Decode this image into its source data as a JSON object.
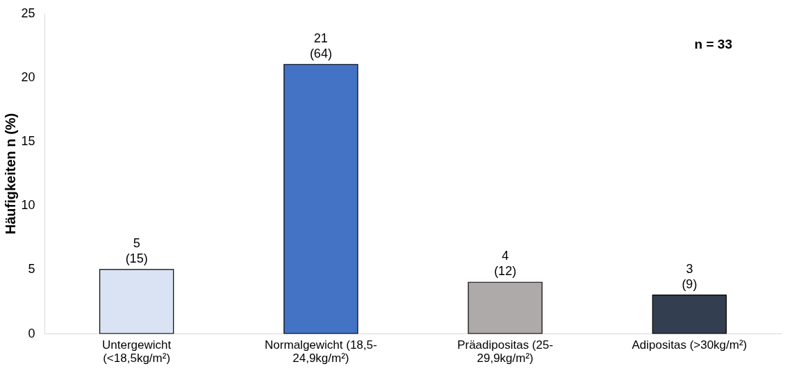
{
  "chart_data": {
    "type": "bar",
    "categories": [
      "Untergewicht (<18,5kg/m²)",
      "Normalgewicht (18,5-24,9kg/m²)",
      "Präadipositas (25-29,9kg/m²)",
      "Adipositas (>30kg/m²)"
    ],
    "values": [
      5,
      21,
      4,
      3
    ],
    "colors": [
      "#dae3f3",
      "#4472c4",
      "#aeaaaa",
      "#333f50"
    ],
    "value_labels": [
      "5\n(15)",
      "21\n(64)",
      "4\n(12)",
      "3\n(9)"
    ],
    "ylabel": "Häufigkeiten n (%)",
    "ylim": [
      0,
      25
    ],
    "yticks": [
      0,
      5,
      10,
      15,
      20,
      25
    ],
    "grid": false,
    "annotations": [
      "n = 33"
    ]
  }
}
